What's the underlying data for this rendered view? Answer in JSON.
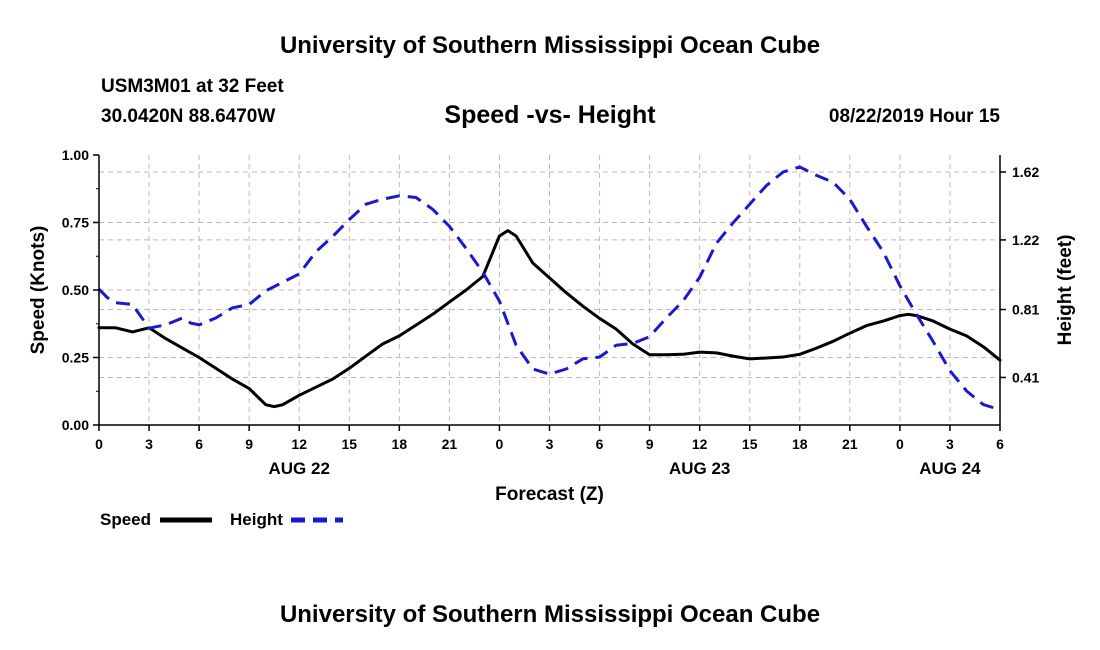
{
  "header": {
    "title": "University of Southern Mississippi Ocean Cube",
    "station": "USM3M01 at 32 Feet",
    "coords": "30.0420N 88.6470W",
    "datetime": "08/22/2019 Hour 15"
  },
  "footer": {
    "title": "University of Southern Mississippi Ocean Cube"
  },
  "legend": {
    "speed_label": "Speed",
    "height_label": "Height"
  },
  "colors": {
    "speed": "#000000",
    "height": "#1a1acc",
    "grid": "#bbbbbb"
  },
  "chart_data": {
    "type": "line",
    "title": "Speed -vs- Height",
    "xlabel": "Forecast (Z)",
    "ylabel": "Speed (Knots)",
    "y2label": "Height (feet)",
    "xlim": [
      0,
      54
    ],
    "ylim": [
      0,
      1.0
    ],
    "y2lim": [
      0.13,
      1.72
    ],
    "x_ticks": [
      {
        "x": 0,
        "label": "0"
      },
      {
        "x": 3,
        "label": "3"
      },
      {
        "x": 6,
        "label": "6"
      },
      {
        "x": 9,
        "label": "9"
      },
      {
        "x": 12,
        "label": "12"
      },
      {
        "x": 15,
        "label": "15"
      },
      {
        "x": 18,
        "label": "18"
      },
      {
        "x": 21,
        "label": "21"
      },
      {
        "x": 24,
        "label": "0"
      },
      {
        "x": 27,
        "label": "3"
      },
      {
        "x": 30,
        "label": "6"
      },
      {
        "x": 33,
        "label": "9"
      },
      {
        "x": 36,
        "label": "12"
      },
      {
        "x": 39,
        "label": "15"
      },
      {
        "x": 42,
        "label": "18"
      },
      {
        "x": 45,
        "label": "21"
      },
      {
        "x": 48,
        "label": "0"
      },
      {
        "x": 51,
        "label": "3"
      },
      {
        "x": 54,
        "label": "6"
      }
    ],
    "date_labels": [
      {
        "x": 12,
        "label": "AUG 22"
      },
      {
        "x": 36,
        "label": "AUG 23"
      },
      {
        "x": 51,
        "label": "AUG 24"
      }
    ],
    "y_ticks": [
      {
        "value": 0.0,
        "label": "0.00"
      },
      {
        "value": 0.25,
        "label": "0.25"
      },
      {
        "value": 0.5,
        "label": "0.50"
      },
      {
        "value": 0.75,
        "label": "0.75"
      },
      {
        "value": 1.0,
        "label": "1.00"
      }
    ],
    "y2_ticks": [
      {
        "value": 0.41,
        "label": "0.41"
      },
      {
        "value": 0.81,
        "label": "0.81"
      },
      {
        "value": 1.22,
        "label": "1.22"
      },
      {
        "value": 1.62,
        "label": "1.62"
      }
    ],
    "grid": true,
    "series": [
      {
        "name": "Speed",
        "axis": "left",
        "style": "solid",
        "x": [
          0,
          1,
          2,
          3,
          4,
          5,
          6,
          7,
          8,
          9,
          10,
          10.5,
          11,
          12,
          13,
          14,
          15,
          16,
          17,
          18,
          19,
          20,
          21,
          22,
          23,
          24,
          24.5,
          25,
          26,
          27,
          28,
          29,
          30,
          31,
          32,
          33,
          34,
          35,
          36,
          37,
          38,
          39,
          40,
          41,
          42,
          43,
          44,
          45,
          46,
          47,
          48,
          48.5,
          49,
          50,
          51,
          52,
          53,
          54
        ],
        "values": [
          0.36,
          0.36,
          0.345,
          0.36,
          0.32,
          0.285,
          0.25,
          0.21,
          0.17,
          0.135,
          0.075,
          0.068,
          0.075,
          0.11,
          0.14,
          0.17,
          0.21,
          0.255,
          0.3,
          0.33,
          0.37,
          0.41,
          0.455,
          0.5,
          0.55,
          0.7,
          0.72,
          0.7,
          0.6,
          0.545,
          0.49,
          0.44,
          0.395,
          0.355,
          0.3,
          0.26,
          0.26,
          0.262,
          0.27,
          0.267,
          0.255,
          0.245,
          0.248,
          0.252,
          0.262,
          0.285,
          0.31,
          0.34,
          0.368,
          0.385,
          0.405,
          0.41,
          0.405,
          0.385,
          0.355,
          0.33,
          0.29,
          0.24
        ]
      },
      {
        "name": "Height",
        "axis": "right",
        "style": "dashed",
        "x": [
          0,
          0.5,
          1,
          2,
          3,
          4,
          5,
          5.5,
          6,
          7,
          8,
          9,
          10,
          11,
          12,
          13,
          14,
          15,
          16,
          17,
          18,
          19,
          20,
          21,
          22,
          23,
          24,
          25,
          26,
          27,
          28,
          29,
          30,
          31,
          32,
          33,
          34,
          35,
          36,
          37,
          38,
          39,
          40,
          41,
          42,
          43,
          44,
          45,
          46,
          47,
          48,
          49,
          50,
          51,
          52,
          53,
          54
        ],
        "values": [
          0.93,
          0.88,
          0.85,
          0.84,
          0.7,
          0.72,
          0.76,
          0.73,
          0.72,
          0.76,
          0.82,
          0.84,
          0.92,
          0.97,
          1.02,
          1.15,
          1.24,
          1.34,
          1.43,
          1.46,
          1.48,
          1.47,
          1.4,
          1.3,
          1.17,
          1.03,
          0.86,
          0.6,
          0.46,
          0.43,
          0.46,
          0.52,
          0.53,
          0.6,
          0.61,
          0.65,
          0.76,
          0.86,
          1.0,
          1.2,
          1.32,
          1.43,
          1.54,
          1.62,
          1.65,
          1.6,
          1.56,
          1.46,
          1.3,
          1.15,
          0.95,
          0.78,
          0.62,
          0.45,
          0.33,
          0.25,
          0.22
        ]
      }
    ]
  }
}
